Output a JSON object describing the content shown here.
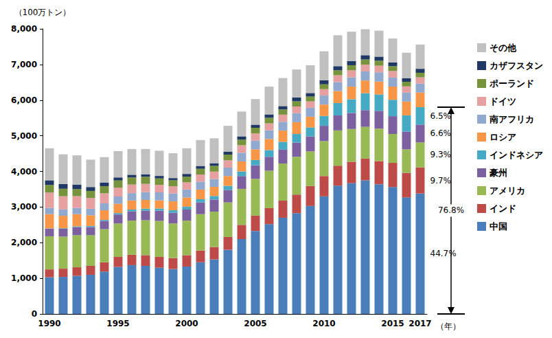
{
  "chart_data": {
    "type": "bar",
    "stacked": true,
    "y_label": "（100万トン）",
    "x_label": "（年）",
    "categories": [
      "1990",
      null,
      null,
      null,
      null,
      "1995",
      null,
      null,
      null,
      null,
      "2000",
      null,
      null,
      null,
      null,
      "2005",
      null,
      null,
      null,
      null,
      "2010",
      null,
      null,
      null,
      null,
      "2015",
      null,
      "2017"
    ],
    "ylim": [
      0,
      8000
    ],
    "yticks": [
      {
        "value": 0,
        "label": "0"
      },
      {
        "value": 1000,
        "label": "1,000"
      },
      {
        "value": 2000,
        "label": "2,000"
      },
      {
        "value": 3000,
        "label": "3,000"
      },
      {
        "value": 4000,
        "label": "4,000"
      },
      {
        "value": 5000,
        "label": "5,000"
      },
      {
        "value": 6000,
        "label": "6,000"
      },
      {
        "value": 7000,
        "label": "7,000"
      },
      {
        "value": 8000,
        "label": "8,000"
      }
    ],
    "grid": false,
    "legend": "right",
    "series": [
      {
        "name": "中国",
        "color": "#4a7ebb",
        "values": [
          1030,
          1040,
          1070,
          1100,
          1190,
          1320,
          1370,
          1350,
          1300,
          1260,
          1330,
          1450,
          1530,
          1800,
          2100,
          2330,
          2520,
          2700,
          2830,
          3030,
          3300,
          3600,
          3670,
          3750,
          3640,
          3560,
          3270,
          3380
        ]
      },
      {
        "name": "インド",
        "color": "#be4b48",
        "values": [
          220,
          230,
          240,
          250,
          260,
          280,
          290,
          300,
          300,
          310,
          320,
          330,
          350,
          360,
          400,
          430,
          450,
          480,
          520,
          560,
          570,
          560,
          600,
          610,
          650,
          680,
          690,
          733
        ]
      },
      {
        "name": "アメリカ",
        "color": "#98b954",
        "values": [
          930,
          900,
          900,
          860,
          930,
          940,
          960,
          980,
          1010,
          970,
          970,
          1020,
          990,
          970,
          1010,
          1030,
          1050,
          1040,
          1060,
          970,
          980,
          990,
          920,
          890,
          910,
          810,
          660,
          700
        ]
      },
      {
        "name": "豪州",
        "color": "#7d60a0",
        "values": [
          210,
          220,
          230,
          230,
          230,
          250,
          260,
          270,
          290,
          300,
          310,
          330,
          340,
          350,
          360,
          380,
          390,
          390,
          400,
          420,
          430,
          420,
          450,
          470,
          500,
          500,
          500,
          500
        ]
      },
      {
        "name": "インドネシア",
        "color": "#46aac5",
        "values": [
          10,
          15,
          20,
          30,
          30,
          40,
          50,
          55,
          60,
          70,
          80,
          90,
          100,
          115,
          130,
          150,
          190,
          220,
          240,
          255,
          275,
          350,
          385,
          475,
          460,
          460,
          455,
          490
        ]
      },
      {
        "name": "ロシア",
        "color": "#f79646",
        "values": [
          400,
          350,
          340,
          300,
          270,
          260,
          255,
          245,
          230,
          250,
          260,
          270,
          255,
          275,
          280,
          300,
          310,
          315,
          330,
          300,
          320,
          335,
          355,
          355,
          360,
          370,
          385,
          410
        ]
      },
      {
        "name": "南アフリカ",
        "color": "#92a9cf",
        "values": [
          175,
          178,
          175,
          182,
          195,
          206,
          206,
          220,
          223,
          223,
          224,
          223,
          220,
          237,
          243,
          244,
          244,
          248,
          252,
          250,
          254,
          253,
          259,
          256,
          261,
          252,
          250,
          252
        ]
      },
      {
        "name": "ドイツ",
        "color": "#e6a0a0",
        "values": [
          430,
          370,
          330,
          300,
          280,
          250,
          240,
          230,
          210,
          200,
          200,
          200,
          210,
          205,
          210,
          200,
          195,
          200,
          190,
          180,
          180,
          190,
          195,
          190,
          185,
          185,
          175,
          175
        ]
      },
      {
        "name": "ポーランド",
        "color": "#77933c",
        "values": [
          215,
          210,
          200,
          200,
          200,
          200,
          200,
          200,
          180,
          170,
          160,
          160,
          160,
          160,
          160,
          160,
          155,
          145,
          145,
          135,
          135,
          140,
          145,
          145,
          140,
          135,
          130,
          127
        ]
      },
      {
        "name": "カザフスタン",
        "color": "#1f3864",
        "values": [
          130,
          130,
          125,
          110,
          105,
          85,
          75,
          70,
          70,
          60,
          75,
          80,
          75,
          85,
          90,
          87,
          95,
          95,
          110,
          100,
          110,
          115,
          120,
          120,
          114,
          107,
          103,
          112
        ]
      },
      {
        "name": "その他",
        "color": "#c0c0c0",
        "values": [
          900,
          837,
          820,
          768,
          710,
          739,
          724,
          710,
          707,
          697,
          721,
          727,
          700,
          723,
          697,
          719,
          781,
          787,
          783,
          780,
          816,
          867,
          821,
          729,
          730,
          671,
          712,
          681
        ]
      }
    ],
    "annotations": [
      {
        "text": "44.7%",
        "category": "2017",
        "series": "中国"
      },
      {
        "text": "9.7%",
        "category": "2017",
        "series": "インド"
      },
      {
        "text": "9.3%",
        "category": "2017",
        "series": "アメリカ"
      },
      {
        "text": "6.6%",
        "category": "2017",
        "series": "豪州"
      },
      {
        "text": "6.5%",
        "category": "2017",
        "series": "インドネシア"
      },
      {
        "text": "76.8%",
        "category": "2017",
        "series_span": [
          "中国",
          "インドネシア"
        ]
      }
    ]
  }
}
